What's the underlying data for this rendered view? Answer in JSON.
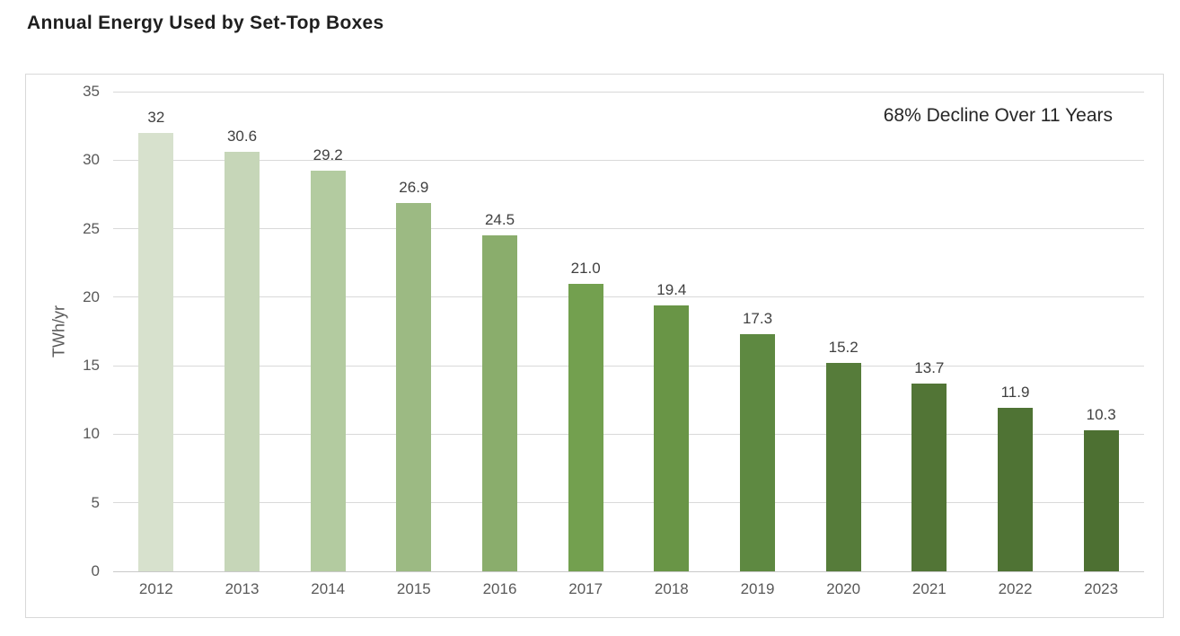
{
  "page": {
    "title": "Annual Energy Used by Set-Top Boxes"
  },
  "chart_data": {
    "type": "bar",
    "title": "Annual Energy Used by Set-Top Boxes",
    "categories": [
      "2012",
      "2013",
      "2014",
      "2015",
      "2016",
      "2017",
      "2018",
      "2019",
      "2020",
      "2021",
      "2022",
      "2023"
    ],
    "values": [
      32,
      30.6,
      29.2,
      26.9,
      24.5,
      21.0,
      19.4,
      17.3,
      15.2,
      13.7,
      11.9,
      10.3
    ],
    "value_labels": [
      "32",
      "30.6",
      "29.2",
      "26.9",
      "24.5",
      "21.0",
      "19.4",
      "17.3",
      "15.2",
      "13.7",
      "11.9",
      "10.3"
    ],
    "xlabel": "",
    "ylabel": "TWh/yr",
    "ylim": [
      0,
      35
    ],
    "ytick_step": 5,
    "yticks": [
      35,
      30,
      25,
      20,
      15,
      10,
      5,
      0
    ],
    "annotation": "68% Decline Over 11 Years",
    "grid": "horizontal",
    "legend": "none",
    "bar_colors": [
      "#d7e1cd",
      "#c6d6b8",
      "#b3cba0",
      "#9cba83",
      "#8aad6c",
      "#73a04f",
      "#699546",
      "#5e8941",
      "#567c3a",
      "#527536",
      "#4f7334",
      "#4d7032"
    ],
    "colors": {
      "title_text": "#1f1f1f",
      "tick_text": "#595959",
      "data_label_text": "#404040",
      "annotation_text": "#262626",
      "grid": "#d9d9d9",
      "axis_line": "#c9c9c9",
      "frame_border": "#d9d9d9",
      "background": "#ffffff"
    }
  }
}
